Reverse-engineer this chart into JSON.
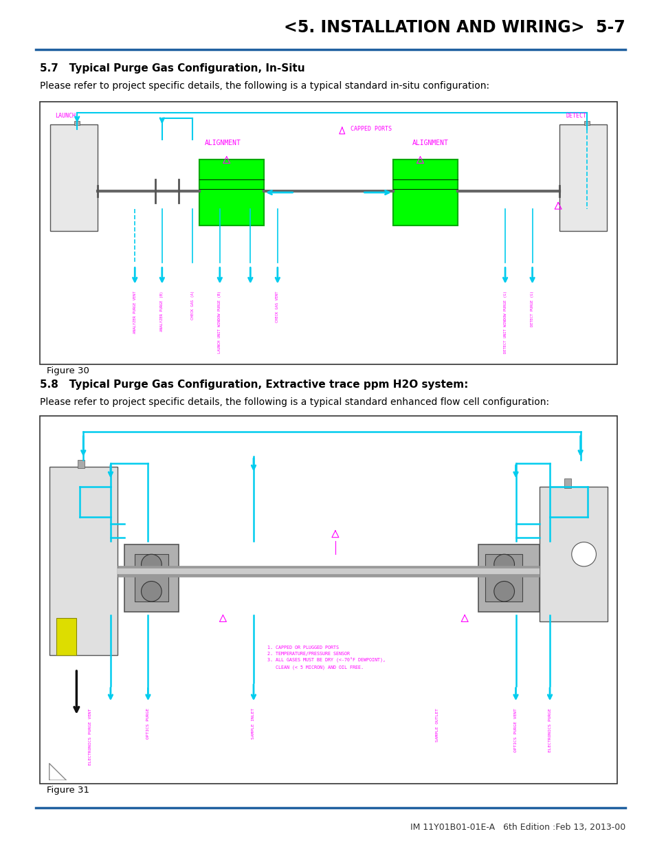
{
  "page_bg": "#ffffff",
  "header_line_color": "#2060a0",
  "header_title": "<5. INSTALLATION AND WIRING>  5-7",
  "header_title_fontsize": 17,
  "footer_text": "IM 11Y01B01-01E-A   6th Edition :Feb 13, 2013-00",
  "footer_text_fontsize": 9,
  "section1_title": "5.7   Typical Purge Gas Configuration, In-Situ",
  "section1_title_fontsize": 11,
  "section1_body": "Please refer to project specific details, the following is a typical standard in-situ configuration:",
  "section1_body_fontsize": 10,
  "fig1_label": "Figure 30",
  "section2_title": "5.8   Typical Purge Gas Configuration, Extractive trace ppm H2O system:",
  "section2_title_fontsize": 11,
  "section2_body": "Please refer to project specific details, the following is a typical standard enhanced flow cell configuration:",
  "section2_body_fontsize": 10,
  "fig2_label": "Figure 31",
  "cyan": "#00CCEE",
  "magenta": "#FF00FF",
  "green_bright": "#00FF00",
  "green_edge": "#00AA00"
}
